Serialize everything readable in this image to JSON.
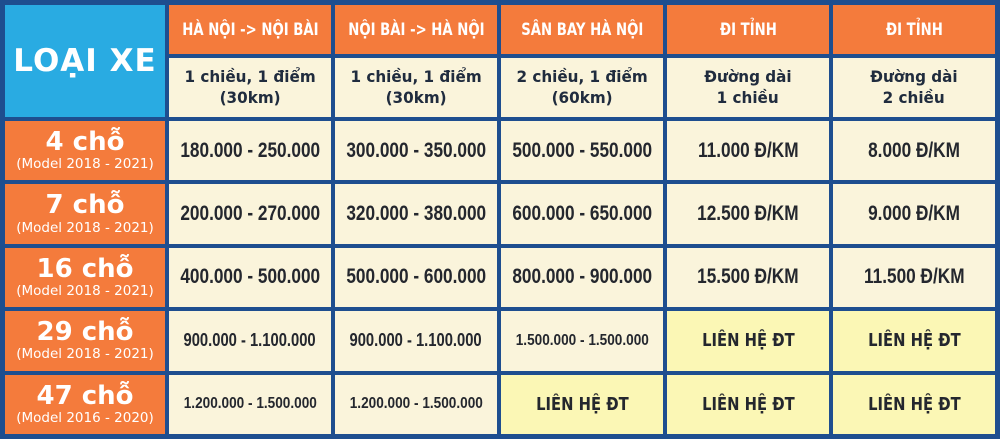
{
  "colors": {
    "header_orange": "#F47B3C",
    "corner_blue": "#29ABE2",
    "grid_navy": "#1E4E8F",
    "cell_cream": "#FAF4DB",
    "cell_highlight_yellow": "#FBF7B5",
    "text_white": "#FFFFFF",
    "text_dark": "#24272E"
  },
  "chart_data": {
    "type": "table",
    "corner_title": "LOẠI XE",
    "columns": [
      {
        "title": "HÀ NỘI -> NỘI BÀI",
        "sub_line1": "1 chiều, 1 điểm",
        "sub_line2": "(30km)"
      },
      {
        "title": "NỘI BÀI -> HÀ NỘI",
        "sub_line1": "1 chiều, 1 điểm",
        "sub_line2": "(30km)"
      },
      {
        "title": "SÂN BAY HÀ NỘI",
        "sub_line1": "2 chiều, 1 điểm",
        "sub_line2": "(60km)"
      },
      {
        "title": "ĐI TỈNH",
        "sub_line1": "Đường dài",
        "sub_line2": "1 chiều"
      },
      {
        "title": "ĐI TỈNH",
        "sub_line1": "Đường dài",
        "sub_line2": "2 chiều"
      }
    ],
    "rows": [
      {
        "seats": "4 chỗ",
        "model": "(Model 2018 - 2021)",
        "cells": [
          "180.000 - 250.000",
          "300.000 - 350.000",
          "500.000 - 550.000",
          "11.000 Đ/KM",
          "8.000 Đ/KM"
        ]
      },
      {
        "seats": "7 chỗ",
        "model": "(Model 2018 - 2021)",
        "cells": [
          "200.000 - 270.000",
          "320.000 - 380.000",
          "600.000 - 650.000",
          "12.500 Đ/KM",
          "9.000 Đ/KM"
        ]
      },
      {
        "seats": "16 chỗ",
        "model": "(Model 2018 - 2021)",
        "cells": [
          "400.000 - 500.000",
          "500.000 - 600.000",
          "800.000 - 900.000",
          "15.500 Đ/KM",
          "11.500 Đ/KM"
        ]
      },
      {
        "seats": "29 chỗ",
        "model": "(Model 2018 - 2021)",
        "cells": [
          "900.000 - 1.100.000",
          "900.000 - 1.100.000",
          "1.500.000 - 1.500.000",
          "LIÊN HỆ ĐT",
          "LIÊN HỆ ĐT"
        ]
      },
      {
        "seats": "47 chỗ",
        "model": "(Model 2016 - 2020)",
        "cells": [
          "1.200.000 - 1.500.000",
          "1.200.000 - 1.500.000",
          "LIÊN HỆ ĐT",
          "LIÊN HỆ ĐT",
          "LIÊN HỆ ĐT"
        ]
      }
    ]
  }
}
